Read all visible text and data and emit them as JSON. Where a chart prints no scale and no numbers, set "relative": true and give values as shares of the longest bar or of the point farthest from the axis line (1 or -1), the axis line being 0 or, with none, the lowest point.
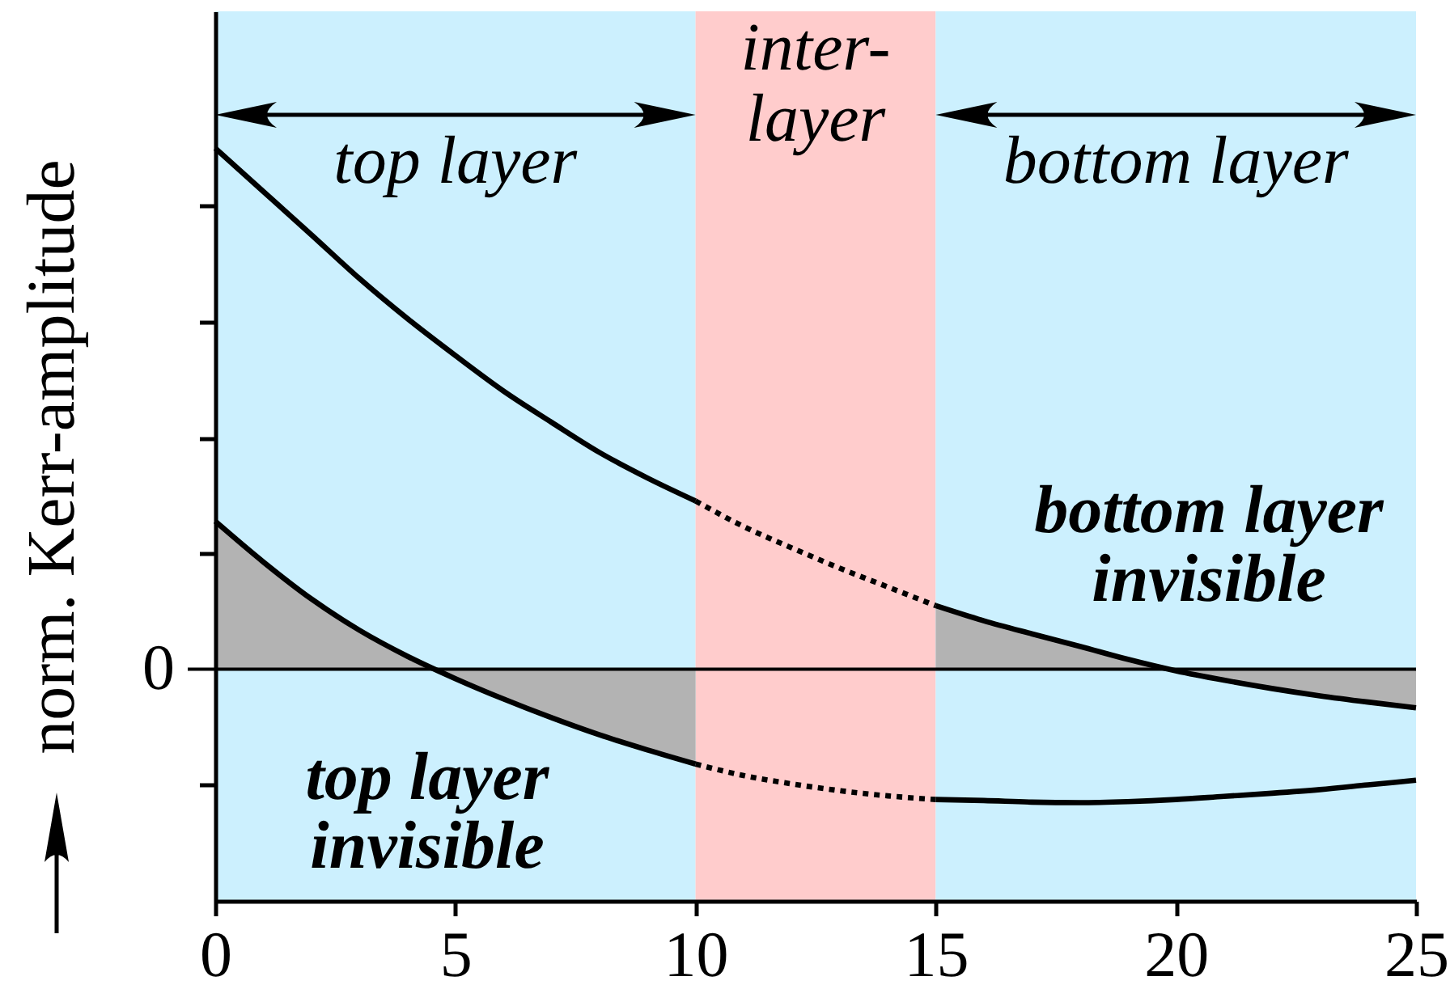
{
  "chart_data": {
    "type": "line",
    "ylabel": "norm. Kerr-amplitude",
    "relative": true,
    "xlim": [
      0,
      25
    ],
    "xticks": [
      0,
      5,
      10,
      15,
      20,
      25
    ],
    "bands": [
      {
        "axis": "x",
        "from": 0,
        "to": 10,
        "label": "top layer",
        "color": "#ccf0fe"
      },
      {
        "axis": "x",
        "from": 10,
        "to": 15,
        "label": "inter-\nlayer",
        "color": "#ffcccc"
      },
      {
        "axis": "x",
        "from": 15,
        "to": 25,
        "label": "bottom layer",
        "color": "#ccf0fe"
      }
    ],
    "ref_lines": [
      {
        "axis": "y",
        "value": 0,
        "label": "0",
        "color": "#000000"
      }
    ],
    "annotations": [
      "top layer\ninvisible",
      "bottom layer\ninvisible"
    ],
    "series": [
      {
        "type": "area",
        "color": "#b3b3b3",
        "x": [
          0,
          1,
          2,
          3,
          4,
          5,
          6,
          7,
          8,
          9,
          10
        ],
        "values": [
          0.284,
          0.206,
          0.135,
          0.075,
          0.025,
          -0.018,
          -0.057,
          -0.093,
          -0.126,
          -0.155,
          -0.182
        ]
      },
      {
        "type": "line",
        "color": "#000000",
        "x": [
          0,
          1,
          2,
          3,
          4,
          5,
          6,
          7,
          8,
          9,
          10
        ],
        "values": [
          1,
          0.917,
          0.834,
          0.75,
          0.673,
          0.602,
          0.534,
          0.474,
          0.416,
          0.367,
          0.323
        ]
      },
      {
        "type": "line",
        "color": "#000000",
        "line_style": "dotted",
        "x": [
          10,
          11,
          12,
          13,
          14,
          15
        ],
        "values": [
          0.323,
          0.274,
          0.233,
          0.194,
          0.158,
          0.122
        ]
      },
      {
        "type": "area",
        "color": "#b3b3b3",
        "x": [
          15,
          16,
          17,
          18,
          19,
          20,
          21,
          22,
          23,
          24,
          25
        ],
        "values": [
          0.122,
          0.093,
          0.068,
          0.044,
          0.019,
          -0.003,
          -0.021,
          -0.037,
          -0.051,
          -0.063,
          -0.074
        ]
      },
      {
        "type": "line",
        "color": "#000000",
        "line_style": "dotted",
        "x": [
          10,
          11,
          12,
          13,
          14,
          15
        ],
        "values": [
          -0.182,
          -0.204,
          -0.22,
          -0.233,
          -0.243,
          -0.25
        ]
      },
      {
        "type": "line",
        "color": "#000000",
        "x": [
          15,
          16,
          17,
          18,
          19,
          20,
          21,
          22,
          23,
          24,
          25
        ],
        "values": [
          -0.25,
          -0.252,
          -0.255,
          -0.256,
          -0.254,
          -0.25,
          -0.244,
          -0.238,
          -0.231,
          -0.222,
          -0.213
        ]
      }
    ]
  }
}
